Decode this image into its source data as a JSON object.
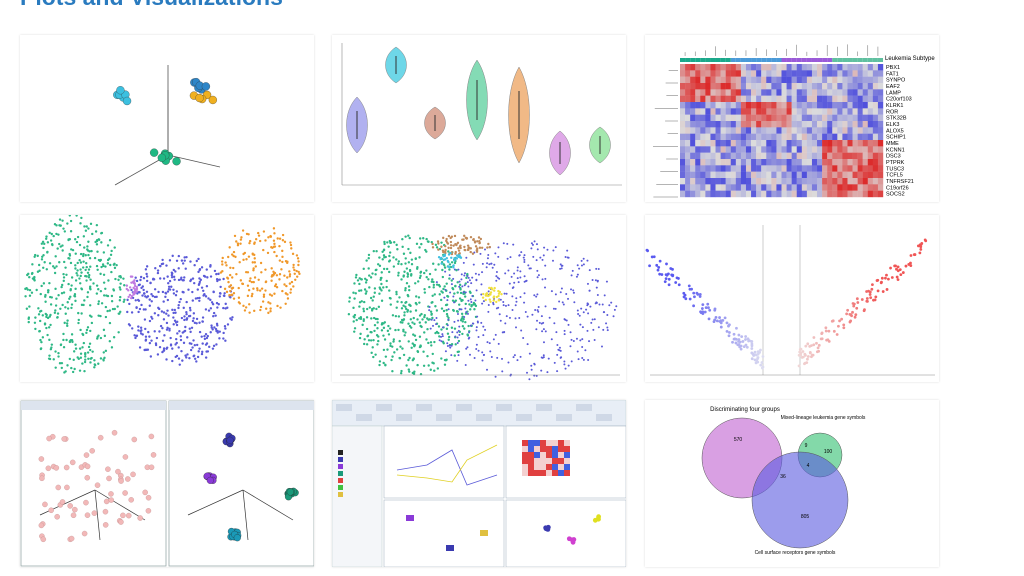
{
  "page": {
    "title": "Plots and Visualizations"
  },
  "heatmap": {
    "legend": "Leukemia Subtype",
    "genes": [
      "PBX1",
      "FAT1",
      "SYNPO",
      "EAF2",
      "LAMP",
      "C20orf103",
      "KLRK1",
      "ROR",
      "STK32B",
      "ELK3",
      "ALOX5",
      "SCHIP1",
      "MME",
      "KCNN1",
      "DSC3",
      "PTPRK",
      "TUSC3",
      "TCFL5",
      "TNFRSF21",
      "C19orf26",
      "SOCS2"
    ]
  },
  "venn": {
    "title": "Discriminating four groups",
    "sets": [
      "Mixed-lineage leukemia gene symbols",
      "Cell surface receptors gene symbols"
    ],
    "counts": [
      570,
      9,
      100,
      4,
      36,
      805
    ]
  }
}
